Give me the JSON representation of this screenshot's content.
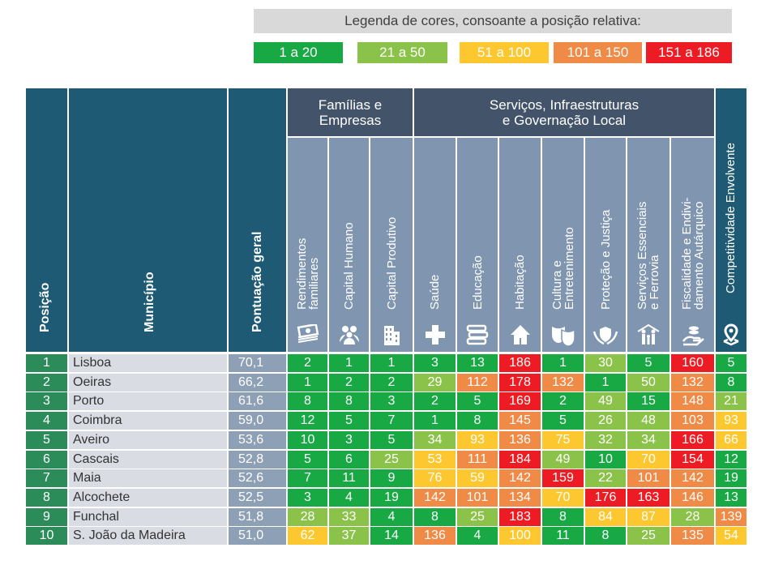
{
  "legend": {
    "title": "Legenda de cores, consoante a posição relativa:",
    "items": [
      {
        "label": "1 a 20",
        "color": "#18a945"
      },
      {
        "label": "21 a 50",
        "color": "#8bc34a"
      },
      {
        "label": "51 a 100",
        "color": "#fdc82f"
      },
      {
        "label": "101 a 150",
        "color": "#ef8a47"
      },
      {
        "label": "151 a 186",
        "color": "#ed1c24"
      }
    ]
  },
  "table": {
    "headers": {
      "posicao": "Posição",
      "municipio": "Município",
      "pontuacao": "Pontuação geral",
      "group1": "Famílias e Empresas",
      "group2_line1": "Serviços, Infraestruturas",
      "group2_line2": "e Governação Local",
      "competitividade": "Competitividade Envolvente",
      "sub": [
        {
          "line1": "Rendimentos",
          "line2": "familiares",
          "icon": "money-stack-icon"
        },
        {
          "line1": "Capital Humano",
          "line2": "",
          "icon": "people-icon"
        },
        {
          "line1": "Capital Produtivo",
          "line2": "",
          "icon": "building-icon"
        },
        {
          "line1": "Saúde",
          "line2": "",
          "icon": "health-cross-icon"
        },
        {
          "line1": "Educação",
          "line2": "",
          "icon": "books-icon"
        },
        {
          "line1": "Habitação",
          "line2": "",
          "icon": "house-icon"
        },
        {
          "line1": "Cultura e",
          "line2": "Entretenimento",
          "icon": "theater-masks-icon"
        },
        {
          "line1": "Proteção e Justiça",
          "line2": "",
          "icon": "shield-hands-icon"
        },
        {
          "line1": "Serviços Essenciais",
          "line2": "e Ferrovia",
          "icon": "family-services-icon"
        },
        {
          "line1": "Fiscalidade e Endivi-",
          "line2": "damento Autárquico",
          "icon": "hand-coins-icon"
        }
      ],
      "competitividade_icon": "map-pin-icon"
    },
    "rows": [
      {
        "pos": "1",
        "mun": "Lisboa",
        "pont": "70,1",
        "vals": [
          "2",
          "1",
          "1",
          "3",
          "13",
          "186",
          "1",
          "30",
          "5",
          "160"
        ],
        "comp": "5"
      },
      {
        "pos": "2",
        "mun": "Oeiras",
        "pont": "66,2",
        "vals": [
          "1",
          "2",
          "2",
          "29",
          "112",
          "178",
          "132",
          "1",
          "50",
          "132"
        ],
        "comp": "8"
      },
      {
        "pos": "3",
        "mun": "Porto",
        "pont": "61,6",
        "vals": [
          "8",
          "8",
          "3",
          "2",
          "5",
          "169",
          "2",
          "49",
          "15",
          "148"
        ],
        "comp": "21"
      },
      {
        "pos": "4",
        "mun": "Coimbra",
        "pont": "59,0",
        "vals": [
          "12",
          "5",
          "7",
          "1",
          "8",
          "145",
          "5",
          "26",
          "48",
          "103"
        ],
        "comp": "93"
      },
      {
        "pos": "5",
        "mun": "Aveiro",
        "pont": "53,6",
        "vals": [
          "10",
          "3",
          "5",
          "34",
          "93",
          "136",
          "75",
          "32",
          "34",
          "166"
        ],
        "comp": "66"
      },
      {
        "pos": "6",
        "mun": "Cascais",
        "pont": "52,8",
        "vals": [
          "5",
          "6",
          "25",
          "53",
          "111",
          "184",
          "49",
          "10",
          "70",
          "154"
        ],
        "comp": "12"
      },
      {
        "pos": "7",
        "mun": "Maia",
        "pont": "52,6",
        "vals": [
          "7",
          "11",
          "9",
          "76",
          "59",
          "142",
          "159",
          "22",
          "101",
          "142"
        ],
        "comp": "19"
      },
      {
        "pos": "8",
        "mun": "Alcochete",
        "pont": "52,5",
        "vals": [
          "3",
          "4",
          "19",
          "142",
          "101",
          "134",
          "70",
          "176",
          "163",
          "146"
        ],
        "comp": "13"
      },
      {
        "pos": "9",
        "mun": "Funchal",
        "pont": "51,8",
        "vals": [
          "28",
          "33",
          "4",
          "8",
          "25",
          "183",
          "8",
          "84",
          "87",
          "28"
        ],
        "comp": "139"
      },
      {
        "pos": "10",
        "mun": "S. João da Madeira",
        "pont": "51,0",
        "vals": [
          "62",
          "37",
          "14",
          "136",
          "4",
          "100",
          "11",
          "8",
          "25",
          "135"
        ],
        "comp": "54"
      }
    ]
  },
  "chart_data": {
    "type": "table",
    "title": "Legenda de cores, consoante a posição relativa:",
    "color_scale": [
      {
        "range": [
          1,
          20
        ],
        "label": "1 a 20",
        "color": "#18a945"
      },
      {
        "range": [
          21,
          50
        ],
        "label": "21 a 50",
        "color": "#8bc34a"
      },
      {
        "range": [
          51,
          100
        ],
        "label": "51 a 100",
        "color": "#fdc82f"
      },
      {
        "range": [
          101,
          150
        ],
        "label": "101 a 150",
        "color": "#ef8a47"
      },
      {
        "range": [
          151,
          186
        ],
        "label": "151 a 186",
        "color": "#ed1c24"
      }
    ],
    "columns": [
      "Posição",
      "Município",
      "Pontuação geral",
      "Rendimentos familiares",
      "Capital Humano",
      "Capital Produtivo",
      "Saúde",
      "Educação",
      "Habitação",
      "Cultura e Entretenimento",
      "Proteção e Justiça",
      "Serviços Essenciais e Ferrovia",
      "Fiscalidade e Endividamento Autárquico",
      "Competitividade Envolvente"
    ]
  }
}
